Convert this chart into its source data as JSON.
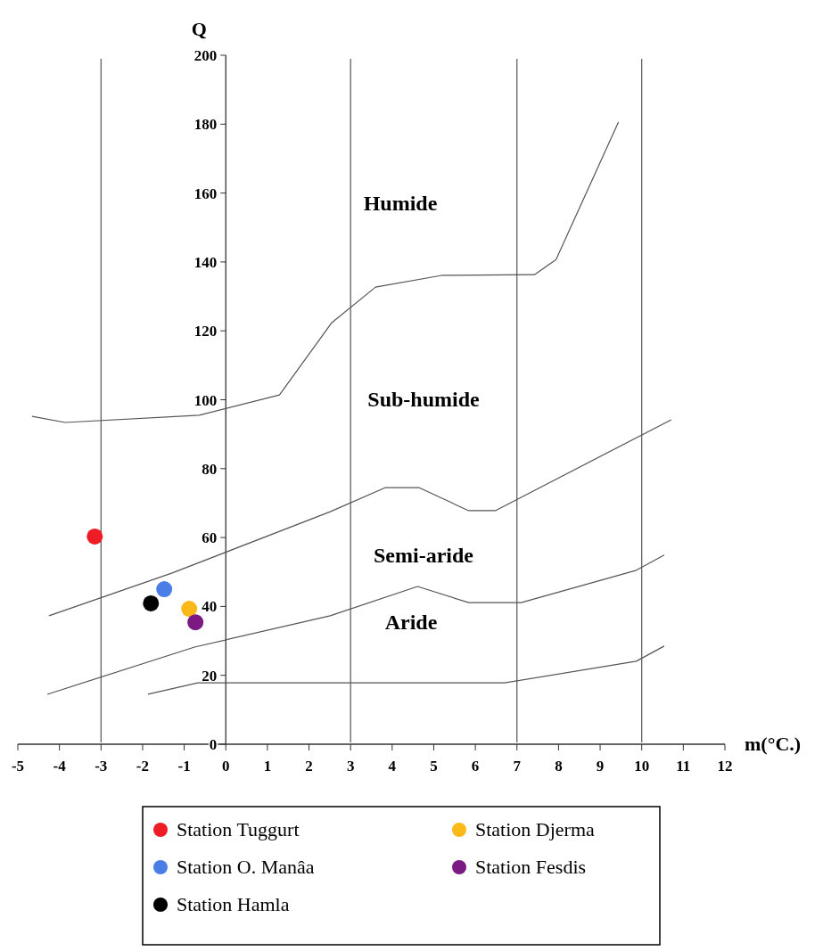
{
  "chart_data": {
    "type": "scatter",
    "xlabel": "m(°C.)",
    "ylabel": "Q",
    "xlim": [
      -5,
      12
    ],
    "xticks": [
      -5,
      -4,
      -3,
      -2,
      -1,
      0,
      1,
      2,
      3,
      4,
      5,
      6,
      7,
      8,
      9,
      10,
      11,
      12
    ],
    "ylim": [
      0,
      200
    ],
    "yticks": [
      0,
      20,
      40,
      60,
      80,
      100,
      120,
      140,
      160,
      180,
      200
    ],
    "grid": false,
    "legend": "bottom",
    "ref_lines": [
      {
        "axis": "x",
        "value": -3,
        "color": "#555555"
      },
      {
        "axis": "x",
        "value": 3,
        "color": "#555555"
      },
      {
        "axis": "x",
        "value": 7,
        "color": "#555555"
      },
      {
        "axis": "x",
        "value": 10,
        "color": "#555555"
      }
    ],
    "annotations": [
      "Humide",
      "Sub-humide",
      "Semi-aride",
      "Aride"
    ],
    "series": [
      {
        "type": "line",
        "color": "#555555",
        "x": [
          -4.66,
          -3.86,
          -0.64,
          1.29,
          2.55,
          3.6,
          5.19,
          7.42,
          7.94,
          9.44
        ],
        "values": [
          95.2,
          93.4,
          95.5,
          101.4,
          122.4,
          132.7,
          136.1,
          136.3,
          140.7,
          180.6
        ]
      },
      {
        "type": "line",
        "color": "#555555",
        "x": [
          -4.25,
          -1.29,
          2.51,
          3.84,
          4.64,
          5.84,
          6.48,
          10.71
        ],
        "values": [
          37.3,
          49.7,
          67.5,
          74.5,
          74.5,
          67.8,
          67.8,
          94.2
        ]
      },
      {
        "type": "line",
        "color": "#555555",
        "x": [
          -4.29,
          -0.75,
          2.51,
          4.61,
          5.84,
          7.1,
          9.87,
          10.54
        ],
        "values": [
          14.5,
          28.2,
          37.3,
          45.8,
          41.1,
          41.1,
          50.5,
          54.9
        ]
      },
      {
        "type": "line",
        "color": "#555555",
        "x": [
          -1.87,
          -0.67,
          6.7,
          9.87,
          10.54
        ],
        "values": [
          14.5,
          17.8,
          17.8,
          24.1,
          28.5
        ]
      },
      {
        "name": "Station Tuggurt",
        "marker": "circle",
        "color": "#ee1c24",
        "x": [
          -3.15
        ],
        "values": [
          60.3
        ]
      },
      {
        "name": "Station O. Manâa",
        "marker": "circle",
        "color": "#4a7ee6",
        "x": [
          -1.48
        ],
        "values": [
          45.0
        ]
      },
      {
        "name": "Station Hamla",
        "marker": "circle",
        "color": "#000000",
        "x": [
          -1.8
        ],
        "values": [
          40.9
        ]
      },
      {
        "name": "Station Djerma",
        "marker": "circle",
        "color": "#fbb917",
        "x": [
          -0.88
        ],
        "values": [
          39.3
        ]
      },
      {
        "name": "Station Fesdis",
        "marker": "circle",
        "color": "#7a1a82",
        "x": [
          -0.73
        ],
        "values": [
          35.4
        ]
      }
    ]
  }
}
